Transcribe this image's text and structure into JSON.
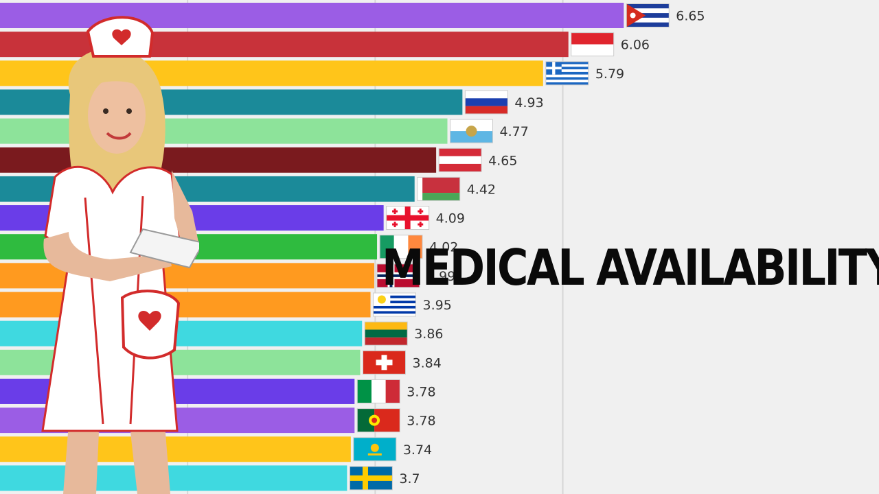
{
  "headline": "MEDICAL AVAILABILITY",
  "chart_data": {
    "type": "bar",
    "orientation": "horizontal",
    "title": "",
    "xlabel": "",
    "ylabel": "",
    "xlim": [
      0,
      8.2
    ],
    "grid": true,
    "rows": [
      {
        "value": 6.65,
        "label": "6.65",
        "color": "#9b5de5",
        "flag": "cuba"
      },
      {
        "value": 6.06,
        "label": "6.06",
        "color": "#c8323a",
        "flag": "indonesia"
      },
      {
        "value": 5.79,
        "label": "5.79",
        "color": "#ffc51a",
        "flag": "greece"
      },
      {
        "value": 4.93,
        "label": "4.93",
        "color": "#1b8a99",
        "flag": "russia"
      },
      {
        "value": 4.77,
        "label": "4.77",
        "color": "#8de39a",
        "flag": "san-marino"
      },
      {
        "value": 4.65,
        "label": "4.65",
        "color": "#7a1a1e",
        "flag": "austria"
      },
      {
        "value": 4.42,
        "label": "4.42",
        "color": "#1b8a99",
        "flag": "belarus"
      },
      {
        "value": 4.09,
        "label": "4.09",
        "color": "#6a3de8",
        "flag": "georgia"
      },
      {
        "value": 4.02,
        "label": "4.02",
        "color": "#2fbb3f",
        "flag": "ireland"
      },
      {
        "value": 3.99,
        "label": "3.99",
        "color": "#ff9a1f",
        "flag": "norway"
      },
      {
        "value": 3.95,
        "label": "3.95",
        "color": "#ff9a1f",
        "flag": "uruguay"
      },
      {
        "value": 3.86,
        "label": "3.86",
        "color": "#3fd9e0",
        "flag": "lithuania"
      },
      {
        "value": 3.84,
        "label": "3.84",
        "color": "#8de39a",
        "flag": "switzerland"
      },
      {
        "value": 3.78,
        "label": "3.78",
        "color": "#6a3de8",
        "flag": "italy"
      },
      {
        "value": 3.78,
        "label": "3.78",
        "color": "#9b5de5",
        "flag": "portugal"
      },
      {
        "value": 3.74,
        "label": "3.74",
        "color": "#ffc51a",
        "flag": "kazakhstan"
      },
      {
        "value": 3.7,
        "label": "3.7",
        "color": "#3fd9e0",
        "flag": "sweden"
      }
    ]
  }
}
